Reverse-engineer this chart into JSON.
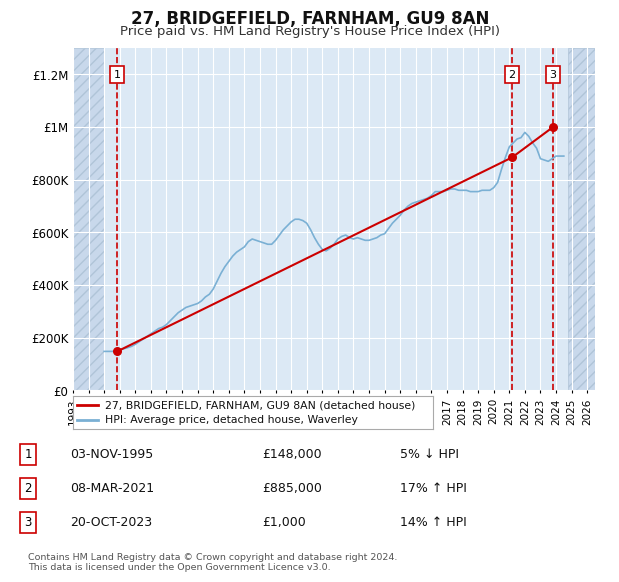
{
  "title": "27, BRIDGEFIELD, FARNHAM, GU9 8AN",
  "subtitle": "Price paid vs. HM Land Registry's House Price Index (HPI)",
  "xlabel": "",
  "ylabel": "",
  "ylim": [
    0,
    1300000
  ],
  "yticks": [
    0,
    200000,
    400000,
    600000,
    800000,
    1000000,
    1200000
  ],
  "ytick_labels": [
    "£0",
    "£200K",
    "£400K",
    "£600K",
    "£800K",
    "£1M",
    "£1.2M"
  ],
  "xlim_start": 1993.0,
  "xlim_end": 2026.5,
  "xticks": [
    1993,
    1994,
    1995,
    1996,
    1997,
    1998,
    1999,
    2000,
    2001,
    2002,
    2003,
    2004,
    2005,
    2006,
    2007,
    2008,
    2009,
    2010,
    2011,
    2012,
    2013,
    2014,
    2015,
    2016,
    2017,
    2018,
    2019,
    2020,
    2021,
    2022,
    2023,
    2024,
    2025,
    2026
  ],
  "plot_bg": "#dce9f5",
  "hatch_bg": "#c8d8eb",
  "grid_color": "#ffffff",
  "hpi_color": "#7ab0d4",
  "price_color": "#cc0000",
  "transactions": [
    {
      "num": 1,
      "date": "03-NOV-1995",
      "price": 148000,
      "hpi_pct": "5% ↓ HPI",
      "year": 1995.84
    },
    {
      "num": 2,
      "date": "08-MAR-2021",
      "price": 885000,
      "hpi_pct": "17% ↑ HPI",
      "year": 2021.18
    },
    {
      "num": 3,
      "date": "20-OCT-2023",
      "price": 1000000,
      "hpi_pct": "14% ↑ HPI",
      "year": 2023.8
    }
  ],
  "legend_label_price": "27, BRIDGEFIELD, FARNHAM, GU9 8AN (detached house)",
  "legend_label_hpi": "HPI: Average price, detached house, Waverley",
  "footer": "Contains HM Land Registry data © Crown copyright and database right 2024.\nThis data is licensed under the Open Government Licence v3.0.",
  "hpi_data_x": [
    1995.0,
    1995.25,
    1995.5,
    1995.75,
    1996.0,
    1996.25,
    1996.5,
    1996.75,
    1997.0,
    1997.25,
    1997.5,
    1997.75,
    1998.0,
    1998.25,
    1998.5,
    1998.75,
    1999.0,
    1999.25,
    1999.5,
    1999.75,
    2000.0,
    2000.25,
    2000.5,
    2000.75,
    2001.0,
    2001.25,
    2001.5,
    2001.75,
    2002.0,
    2002.25,
    2002.5,
    2002.75,
    2003.0,
    2003.25,
    2003.5,
    2003.75,
    2004.0,
    2004.25,
    2004.5,
    2004.75,
    2005.0,
    2005.25,
    2005.5,
    2005.75,
    2006.0,
    2006.25,
    2006.5,
    2006.75,
    2007.0,
    2007.25,
    2007.5,
    2007.75,
    2008.0,
    2008.25,
    2008.5,
    2008.75,
    2009.0,
    2009.25,
    2009.5,
    2009.75,
    2010.0,
    2010.25,
    2010.5,
    2010.75,
    2011.0,
    2011.25,
    2011.5,
    2011.75,
    2012.0,
    2012.25,
    2012.5,
    2012.75,
    2013.0,
    2013.25,
    2013.5,
    2013.75,
    2014.0,
    2014.25,
    2014.5,
    2014.75,
    2015.0,
    2015.25,
    2015.5,
    2015.75,
    2016.0,
    2016.25,
    2016.5,
    2016.75,
    2017.0,
    2017.25,
    2017.5,
    2017.75,
    2018.0,
    2018.25,
    2018.5,
    2018.75,
    2019.0,
    2019.25,
    2019.5,
    2019.75,
    2020.0,
    2020.25,
    2020.5,
    2020.75,
    2021.0,
    2021.25,
    2021.5,
    2021.75,
    2022.0,
    2022.25,
    2022.5,
    2022.75,
    2023.0,
    2023.25,
    2023.5,
    2023.75,
    2024.0,
    2024.25,
    2024.5
  ],
  "hpi_data_y": [
    148000,
    148000,
    148000,
    150000,
    155000,
    158000,
    162000,
    167000,
    175000,
    185000,
    195000,
    205000,
    215000,
    225000,
    235000,
    240000,
    250000,
    265000,
    280000,
    295000,
    305000,
    315000,
    320000,
    325000,
    330000,
    340000,
    355000,
    365000,
    385000,
    415000,
    445000,
    470000,
    490000,
    510000,
    525000,
    535000,
    545000,
    565000,
    575000,
    570000,
    565000,
    560000,
    555000,
    555000,
    570000,
    590000,
    610000,
    625000,
    640000,
    650000,
    650000,
    645000,
    635000,
    610000,
    580000,
    555000,
    535000,
    530000,
    540000,
    555000,
    575000,
    585000,
    590000,
    580000,
    575000,
    580000,
    575000,
    570000,
    570000,
    575000,
    580000,
    590000,
    595000,
    615000,
    635000,
    650000,
    665000,
    685000,
    700000,
    710000,
    715000,
    720000,
    725000,
    730000,
    740000,
    755000,
    755000,
    755000,
    760000,
    765000,
    765000,
    760000,
    760000,
    760000,
    755000,
    755000,
    755000,
    760000,
    760000,
    760000,
    770000,
    790000,
    840000,
    885000,
    925000,
    940000,
    955000,
    960000,
    980000,
    965000,
    940000,
    920000,
    880000,
    875000,
    870000,
    880000,
    890000,
    890000,
    890000
  ],
  "price_data_x": [
    1995.84,
    2021.18,
    2023.8
  ],
  "price_data_y": [
    148000,
    885000,
    1000000
  ]
}
